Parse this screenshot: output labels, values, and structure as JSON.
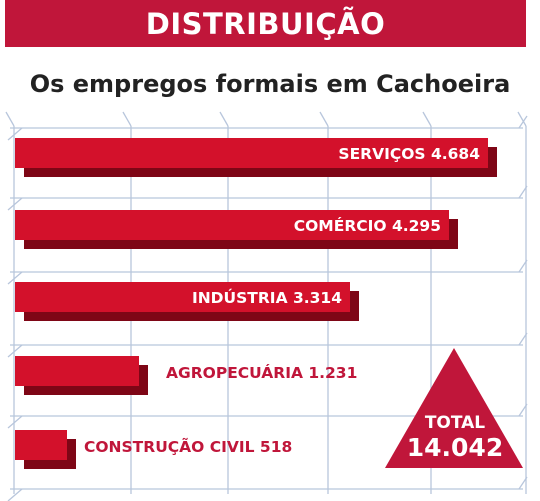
{
  "header": {
    "title": "DISTRIBUIÇÃO"
  },
  "colors": {
    "accent": "#c0163a",
    "grid": "#b8c6dc",
    "bar_top": "#d3112b",
    "bar_shadow": "#7e0616"
  },
  "chart_data": {
    "type": "bar",
    "orientation": "horizontal",
    "title": "Os empregos formais em Cachoeira",
    "grid": true,
    "categories": [
      "SERVIÇOS",
      "COMÉRCIO",
      "INDÚSTRIA",
      "AGROPECUÁRIA",
      "CONSTRUÇÃO CIVIL"
    ],
    "values": [
      4684,
      4295,
      3314,
      1231,
      518
    ],
    "value_labels": [
      "4.684",
      "4.295",
      "3.314",
      "1.231",
      "518"
    ],
    "total": {
      "label": "TOTAL",
      "value": 14042,
      "value_label": "14.042"
    }
  }
}
